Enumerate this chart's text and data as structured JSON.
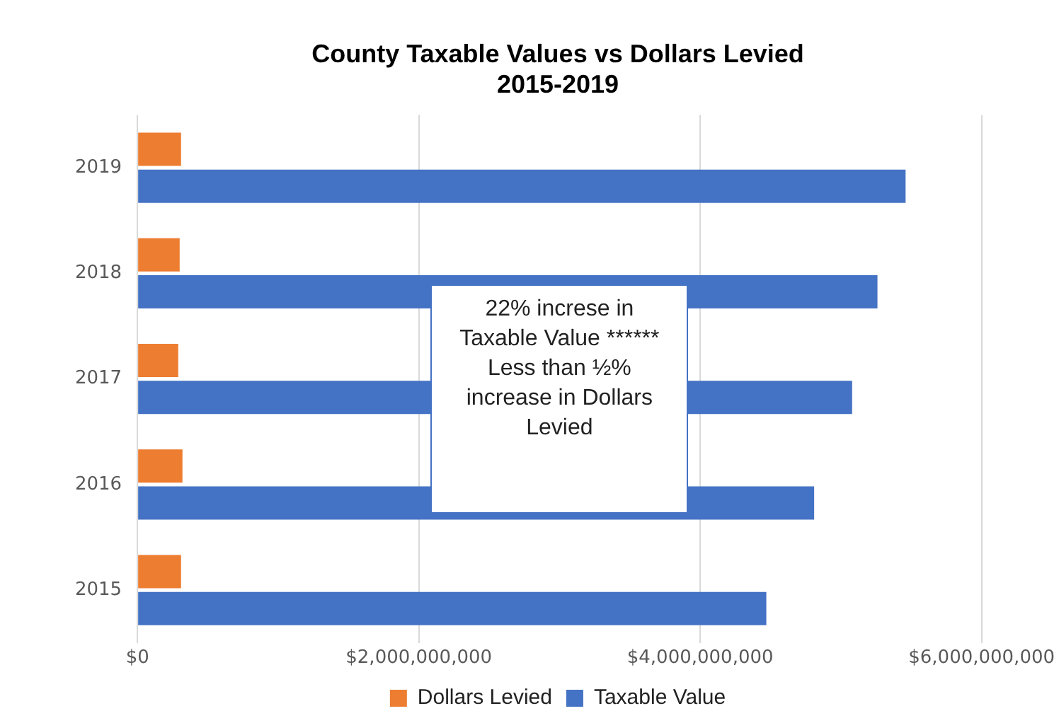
{
  "chart_data": {
    "type": "bar",
    "orientation": "horizontal",
    "title": "County Taxable Values vs Dollars Levied\n2015-2019",
    "categories": [
      "2019",
      "2018",
      "2017",
      "2016",
      "2015"
    ],
    "series": [
      {
        "name": "Dollars Levied",
        "color": "#ed7d31",
        "values": [
          310000000,
          300000000,
          290000000,
          320000000,
          310000000
        ]
      },
      {
        "name": "Taxable Value",
        "color": "#4472c4",
        "values": [
          5460000000,
          5260000000,
          5080000000,
          4810000000,
          4470000000
        ]
      }
    ],
    "xlim": [
      0,
      6000000000
    ],
    "xticks": [
      {
        "value": 0,
        "label": "$0"
      },
      {
        "value": 2000000000,
        "label": "$2,000,000,000"
      },
      {
        "value": 4000000000,
        "label": "$4,000,000,000"
      },
      {
        "value": 6000000000,
        "label": "$6,000,000,000"
      }
    ],
    "grid": "x",
    "legend": "bottom",
    "annotations": [
      "22% increse in Taxable Value ****** Less than ½% increase in Dollars Levied"
    ]
  }
}
